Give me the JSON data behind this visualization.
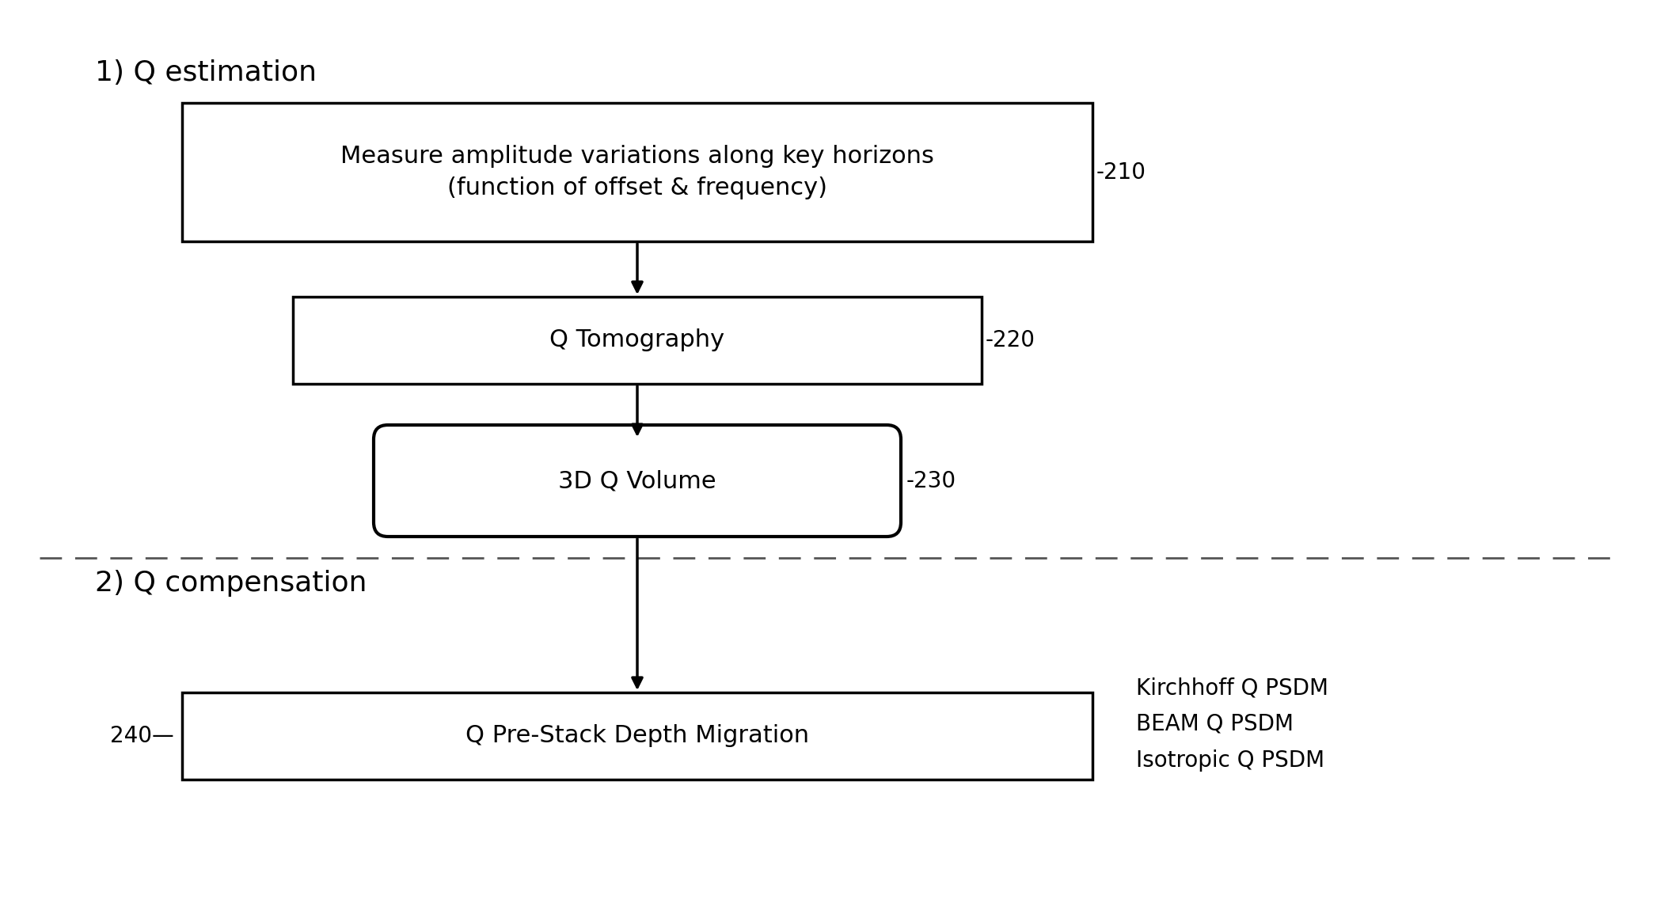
{
  "title_section1": "1) Q estimation",
  "title_section2": "2) Q compensation",
  "box210_text": "Measure amplitude variations along key horizons\n(function of offset & frequency)",
  "box210_label": "-210",
  "box220_text": "Q Tomography",
  "box220_label": "-220",
  "box230_text": "3D Q Volume",
  "box230_label": "-230",
  "box240_text": "Q Pre-Stack Depth Migration",
  "box240_label": "240",
  "side_text": "Kirchhoff Q PSDM\nBEAM Q PSDM\nIsotropic Q PSDM",
  "bg_color": "#ffffff",
  "box_edge_color": "#000000",
  "text_color": "#000000",
  "arrow_color": "#000000",
  "dashed_line_color": "#555555",
  "font_size_title": 26,
  "font_size_box": 22,
  "font_size_label": 20,
  "font_size_side": 20
}
